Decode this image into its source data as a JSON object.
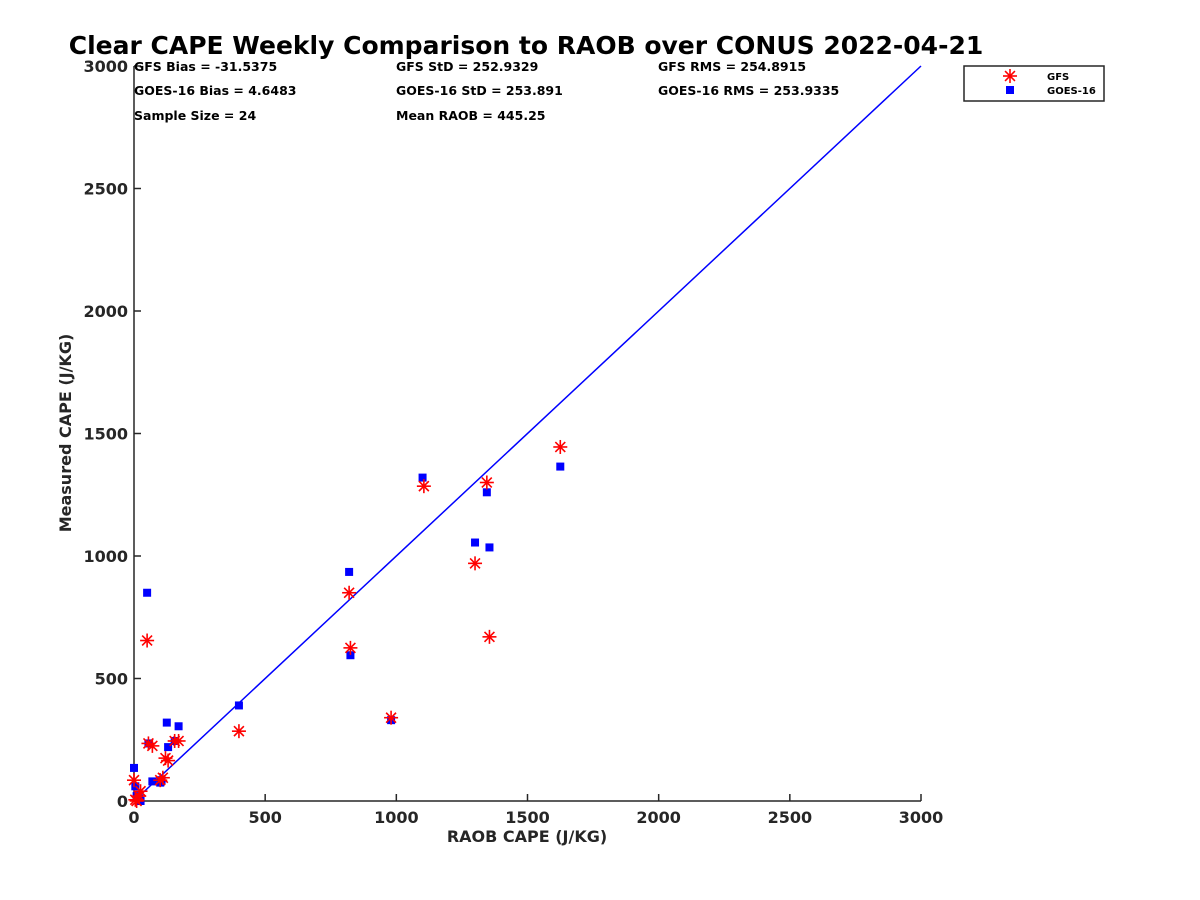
{
  "chart_data": {
    "type": "scatter",
    "title": "Clear CAPE Weekly Comparison to RAOB over CONUS 2022-04-21",
    "xlabel": "RAOB CAPE (J/KG)",
    "ylabel": "Measured CAPE (J/KG)",
    "xlim": [
      0,
      3000
    ],
    "ylim": [
      0,
      3000
    ],
    "xticks": [
      "0",
      "500",
      "1000",
      "1500",
      "2000",
      "2500",
      "3000"
    ],
    "yticks": [
      "0",
      "500",
      "1000",
      "1500",
      "2000",
      "2500",
      "3000"
    ],
    "grid": false,
    "legend_position": "top-right",
    "stats": [
      "GFS Bias = -31.5375",
      "GFS StD = 252.9329",
      "GFS RMS = 254.8915",
      "GOES-16 Bias = 4.6483",
      "GOES-16 StD = 253.891",
      "GOES-16 RMS = 253.9335",
      "Sample Size = 24",
      "Mean RAOB = 445.25"
    ],
    "reference_line": {
      "x": [
        0,
        3000
      ],
      "y": [
        0,
        3000
      ],
      "color": "#0000ff"
    },
    "series": [
      {
        "name": "GFS",
        "marker": "asterisk",
        "color": "#ff0000",
        "x": [
          0,
          5,
          10,
          20,
          25,
          50,
          55,
          70,
          100,
          110,
          120,
          130,
          155,
          170,
          400,
          820,
          825,
          980,
          1105,
          1300,
          1345,
          1355,
          1625
        ],
        "y": [
          85,
          5,
          0,
          20,
          40,
          655,
          235,
          225,
          85,
          95,
          175,
          165,
          245,
          245,
          285,
          850,
          625,
          340,
          1285,
          970,
          1300,
          670,
          1445
        ]
      },
      {
        "name": "GOES-16",
        "marker": "square",
        "color": "#0000ff",
        "x": [
          0,
          5,
          10,
          20,
          25,
          50,
          55,
          70,
          100,
          105,
          125,
          130,
          155,
          170,
          400,
          820,
          825,
          980,
          1100,
          1300,
          1345,
          1355,
          1625
        ],
        "y": [
          135,
          60,
          20,
          10,
          0,
          850,
          235,
          80,
          75,
          85,
          320,
          220,
          245,
          305,
          390,
          935,
          595,
          330,
          1320,
          1055,
          1260,
          1035,
          1365
        ]
      }
    ]
  }
}
